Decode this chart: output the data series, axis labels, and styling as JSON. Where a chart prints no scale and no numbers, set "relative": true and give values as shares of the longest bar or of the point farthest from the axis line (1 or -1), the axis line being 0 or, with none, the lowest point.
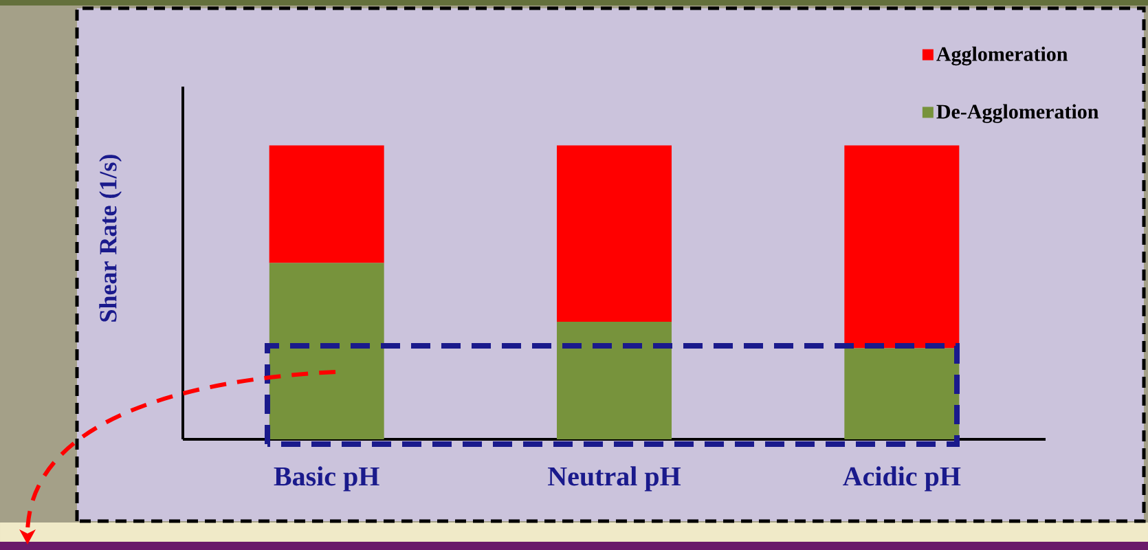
{
  "chart_data": {
    "type": "bar",
    "stacked": true,
    "relative": true,
    "ylabel": "Shear Rate (1/s)",
    "legend": "top right",
    "categories": [
      "Basic pH",
      "Neutral pH",
      "Acidic pH"
    ],
    "series": [
      {
        "name": "De-Agglomeration",
        "color": "#77933c",
        "values": [
          0.6,
          0.4,
          0.31
        ]
      },
      {
        "name": "Agglomeration",
        "color": "#ff0000",
        "values": [
          0.4,
          0.6,
          0.69
        ]
      }
    ]
  }
}
